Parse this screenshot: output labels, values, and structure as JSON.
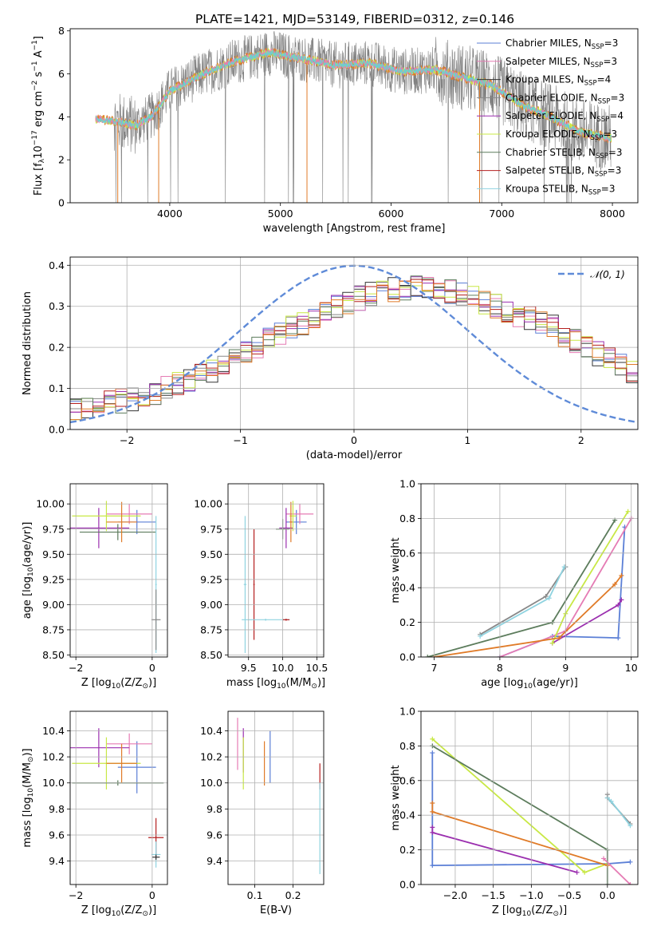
{
  "figure": {
    "title": "PLATE=1421, MJD=53149, FIBERID=0312, z=0.146"
  },
  "colors": {
    "Chabrier MILES": "#5b7fd6",
    "Salpeter MILES": "#e57bb4",
    "Kroupa MILES": "#333333",
    "Chabrier ELODIE": "#888888",
    "Salpeter ELODIE": "#9b2faf",
    "Kroupa ELODIE": "#c8e845",
    "Chabrier STELIB": "#5c7c5c",
    "Salpeter STELIB": "#b51f1f",
    "Kroupa STELIB": "#8fd3e0",
    "spectrum_gray": "#808080",
    "orange": "#e07b28",
    "teal": "#6ad1d1",
    "normal_curve": "#5f8bd8"
  },
  "chart_data": [
    {
      "id": "spectrum",
      "type": "line",
      "title": "PLATE=1421, MJD=53149, FIBERID=0312, z=0.146",
      "xlabel": "wavelength [Angstrom, rest frame]",
      "ylabel": "Flux [f_λ10^-17 erg cm^-2 s^-1 A^-1]",
      "xlim": [
        3100,
        8230
      ],
      "ylim": [
        0,
        8.1
      ],
      "xticks": [
        "4000",
        "5000",
        "6000",
        "7000",
        "8000"
      ],
      "yticks": [
        "0",
        "2",
        "4",
        "6",
        "8"
      ],
      "x_range_data": [
        3330,
        7990
      ],
      "legend": {
        "placement": "top-right",
        "entries": [
          {
            "label": "Chabrier MILES, N",
            "sub": "SSP",
            "suffix": "=3"
          },
          {
            "label": "Salpeter MILES, N",
            "sub": "SSP",
            "suffix": "=3"
          },
          {
            "label": "Kroupa MILES, N",
            "sub": "SSP",
            "suffix": "=4"
          },
          {
            "label": "Chabrier ELODIE, N",
            "sub": "SSP",
            "suffix": "=3"
          },
          {
            "label": "Salpeter ELODIE, N",
            "sub": "SSP",
            "suffix": "=4"
          },
          {
            "label": "Kroupa ELODIE, N",
            "sub": "SSP",
            "suffix": "=3"
          },
          {
            "label": "Chabrier STELIB, N",
            "sub": "SSP",
            "suffix": "=3"
          },
          {
            "label": "Salpeter STELIB, N",
            "sub": "SSP",
            "suffix": "=3"
          },
          {
            "label": "Kroupa STELIB, N",
            "sub": "SSP",
            "suffix": "=3"
          }
        ]
      },
      "continuum": [
        [
          3330,
          3.9
        ],
        [
          3500,
          3.8
        ],
        [
          3700,
          3.6
        ],
        [
          3850,
          4.1
        ],
        [
          4000,
          5.2
        ],
        [
          4300,
          6.0
        ],
        [
          4600,
          6.6
        ],
        [
          4900,
          7.0
        ],
        [
          5200,
          6.7
        ],
        [
          5500,
          6.4
        ],
        [
          5800,
          6.5
        ],
        [
          6100,
          6.1
        ],
        [
          6400,
          6.2
        ],
        [
          6600,
          5.9
        ],
        [
          6900,
          5.5
        ],
        [
          7200,
          4.5
        ],
        [
          7400,
          4.1
        ],
        [
          7700,
          3.3
        ],
        [
          7990,
          3.0
        ]
      ]
    },
    {
      "id": "residuals",
      "type": "histogram",
      "xlabel": "(data-model)/error",
      "ylabel": "Normed distribution",
      "xlim": [
        -2.5,
        2.5
      ],
      "ylim": [
        0,
        0.42
      ],
      "xticks": [
        "−2",
        "−1",
        "0",
        "1",
        "2"
      ],
      "yticks": [
        "0.0",
        "0.1",
        "0.2",
        "0.3",
        "0.4"
      ],
      "bin_width": 0.1,
      "base_values": [
        0.05,
        0.055,
        0.06,
        0.065,
        0.07,
        0.075,
        0.085,
        0.09,
        0.1,
        0.11,
        0.12,
        0.13,
        0.14,
        0.155,
        0.17,
        0.185,
        0.2,
        0.22,
        0.235,
        0.25,
        0.26,
        0.27,
        0.285,
        0.3,
        0.31,
        0.32,
        0.33,
        0.335,
        0.34,
        0.345,
        0.35,
        0.345,
        0.34,
        0.335,
        0.33,
        0.32,
        0.31,
        0.3,
        0.29,
        0.28,
        0.27,
        0.26,
        0.25,
        0.23,
        0.215,
        0.2,
        0.185,
        0.17,
        0.155,
        0.14
      ],
      "legend": {
        "label": "𝒩(0, 1)",
        "placement": "top-right"
      }
    },
    {
      "id": "age-vs-Z",
      "type": "errorbar",
      "xlabel": "Z [log10(Z/Z⊙)]",
      "ylabel": "age  [log10(age/yr)]",
      "xlim": [
        -2.15,
        0.4
      ],
      "ylim": [
        8.48,
        10.2
      ],
      "xticks": [
        "−2",
        "0"
      ],
      "yticks": [
        "8.50",
        "8.75",
        "9.00",
        "9.25",
        "9.50",
        "9.75",
        "10.00"
      ],
      "points": [
        {
          "x": -0.4,
          "y": 9.82,
          "xerr": 0.5,
          "yerr": 0.12,
          "color": "Chabrier MILES"
        },
        {
          "x": -0.6,
          "y": 9.9,
          "xerr": 0.6,
          "yerr": 0.1,
          "color": "Salpeter MILES"
        },
        {
          "x": -1.4,
          "y": 9.76,
          "xerr": 0.8,
          "yerr": 0.2,
          "color": "Salpeter ELODIE"
        },
        {
          "x": -1.2,
          "y": 9.88,
          "xerr": 0.9,
          "yerr": 0.15,
          "color": "Kroupa ELODIE"
        },
        {
          "x": -0.9,
          "y": 9.72,
          "xerr": 1.0,
          "yerr": 0.08,
          "color": "Chabrier STELIB"
        },
        {
          "x": -0.8,
          "y": 9.82,
          "xerr": 0.4,
          "yerr": 0.2,
          "color": "orange"
        },
        {
          "x": 0.1,
          "y": 9.2,
          "xerr": 0.02,
          "yerr": 0.68,
          "color": "Kroupa STELIB"
        },
        {
          "x": 0.1,
          "y": 8.85,
          "xerr": 0.12,
          "yerr": 0.3,
          "color": "Chabrier ELODIE"
        }
      ]
    },
    {
      "id": "age-vs-mass",
      "type": "errorbar",
      "xlabel": "mass [log10(M/M⊙)]",
      "ylabel": "",
      "xlim": [
        9.2,
        10.6
      ],
      "ylim": [
        8.48,
        10.2
      ],
      "xticks": [
        "9.5",
        "10.0",
        "10.5"
      ],
      "yticks": [
        "8.50",
        "8.75",
        "9.00",
        "9.25",
        "9.50",
        "9.75",
        "10.00"
      ],
      "points": [
        {
          "x": 10.2,
          "y": 9.82,
          "xerr": 0.15,
          "yerr": 0.12,
          "color": "Chabrier MILES"
        },
        {
          "x": 10.25,
          "y": 9.9,
          "xerr": 0.2,
          "yerr": 0.1,
          "color": "Salpeter MILES"
        },
        {
          "x": 10.05,
          "y": 9.76,
          "xerr": 0.1,
          "yerr": 0.2,
          "color": "Salpeter ELODIE"
        },
        {
          "x": 10.15,
          "y": 9.88,
          "xerr": 0.05,
          "yerr": 0.15,
          "color": "Kroupa ELODIE"
        },
        {
          "x": 10.0,
          "y": 9.75,
          "xerr": 0.1,
          "yerr": 0.1,
          "color": "Chabrier STELIB"
        },
        {
          "x": 10.12,
          "y": 9.82,
          "xerr": 0.02,
          "yerr": 0.2,
          "color": "orange"
        },
        {
          "x": 9.45,
          "y": 9.2,
          "xerr": 0.02,
          "yerr": 0.68,
          "color": "Kroupa STELIB"
        },
        {
          "x": 9.58,
          "y": 9.2,
          "xerr": 0.01,
          "yerr": 0.55,
          "color": "Salpeter STELIB"
        },
        {
          "x": 9.75,
          "y": 8.85,
          "xerr": 0.35,
          "yerr": 0.01,
          "color": "Kroupa STELIB"
        },
        {
          "x": 10.05,
          "y": 8.85,
          "xerr": 0.05,
          "yerr": 0.01,
          "color": "Salpeter STELIB"
        }
      ]
    },
    {
      "id": "mass-weight-vs-age",
      "type": "line",
      "xlabel": "age  [log10(age/yr)]",
      "ylabel": "mass weight",
      "xlim": [
        6.8,
        10.1
      ],
      "ylim": [
        0,
        1.0
      ],
      "xticks": [
        "7",
        "8",
        "9",
        "10"
      ],
      "yticks": [
        "0.0",
        "0.2",
        "0.4",
        "0.6",
        "0.8",
        "1.0"
      ],
      "series": [
        {
          "color": "Chabrier MILES",
          "points": [
            [
              8.0,
              0.0
            ],
            [
              8.8,
              0.12
            ],
            [
              9.8,
              0.11
            ],
            [
              9.9,
              0.75
            ]
          ]
        },
        {
          "color": "Salpeter MILES",
          "points": [
            [
              8.0,
              0.0
            ],
            [
              9.0,
              0.15
            ],
            [
              10.0,
              0.8
            ]
          ]
        },
        {
          "color": "Salpeter ELODIE",
          "points": [
            [
              8.8,
              0.08
            ],
            [
              9.8,
              0.3
            ],
            [
              9.85,
              0.33
            ]
          ]
        },
        {
          "color": "Kroupa ELODIE",
          "points": [
            [
              8.8,
              0.08
            ],
            [
              9.0,
              0.25
            ],
            [
              9.95,
              0.84
            ]
          ]
        },
        {
          "color": "Chabrier STELIB",
          "points": [
            [
              6.9,
              0.0
            ],
            [
              8.8,
              0.2
            ],
            [
              9.75,
              0.79
            ]
          ]
        },
        {
          "color": "orange",
          "points": [
            [
              7.0,
              0.0
            ],
            [
              8.9,
              0.11
            ],
            [
              9.75,
              0.42
            ],
            [
              9.85,
              0.47
            ]
          ]
        },
        {
          "color": "Chabrier ELODIE",
          "points": [
            [
              7.7,
              0.13
            ],
            [
              8.7,
              0.35
            ],
            [
              9.0,
              0.52
            ]
          ]
        },
        {
          "color": "Kroupa STELIB",
          "points": [
            [
              7.7,
              0.12
            ],
            [
              8.75,
              0.34
            ],
            [
              8.98,
              0.52
            ]
          ]
        }
      ]
    },
    {
      "id": "mass-vs-Z",
      "type": "errorbar",
      "xlabel": "Z [log10(Z/Z⊙)]",
      "ylabel": "mass [log10(M/M⊙)]",
      "xlim": [
        -2.15,
        0.4
      ],
      "ylim": [
        9.22,
        10.55
      ],
      "xticks": [
        "−2",
        "0"
      ],
      "yticks": [
        "9.4",
        "9.6",
        "9.8",
        "10.0",
        "10.2",
        "10.4"
      ],
      "points": [
        {
          "x": -0.4,
          "y": 10.12,
          "xerr": 0.5,
          "yerr": 0.2,
          "color": "Chabrier MILES"
        },
        {
          "x": -0.6,
          "y": 10.3,
          "xerr": 0.6,
          "yerr": 0.08,
          "color": "Salpeter MILES"
        },
        {
          "x": -1.4,
          "y": 10.27,
          "xerr": 0.8,
          "yerr": 0.15,
          "color": "Salpeter ELODIE"
        },
        {
          "x": -1.2,
          "y": 10.15,
          "xerr": 0.9,
          "yerr": 0.2,
          "color": "Kroupa ELODIE"
        },
        {
          "x": -0.9,
          "y": 10.0,
          "xerr": 1.2,
          "yerr": 0.02,
          "color": "Chabrier STELIB"
        },
        {
          "x": -0.8,
          "y": 10.15,
          "xerr": 0.4,
          "yerr": 0.15,
          "color": "orange"
        },
        {
          "x": 0.1,
          "y": 9.58,
          "xerr": 0.2,
          "yerr": 0.15,
          "color": "Salpeter STELIB"
        },
        {
          "x": 0.1,
          "y": 9.45,
          "xerr": 0.12,
          "yerr": 0.1,
          "color": "Kroupa STELIB"
        },
        {
          "x": 0.1,
          "y": 9.43,
          "xerr": 0.1,
          "yerr": 0.02,
          "color": "Kroupa MILES"
        }
      ]
    },
    {
      "id": "mass-vs-EBV",
      "type": "errorbar",
      "xlabel": "E(B-V)",
      "ylabel": "",
      "xlim": [
        0.03,
        0.28
      ],
      "ylim": [
        9.22,
        10.55
      ],
      "xticks": [
        "0.1",
        "0.2"
      ],
      "yticks": [
        "9.4",
        "9.6",
        "9.8",
        "10.0",
        "10.2",
        "10.4"
      ],
      "points": [
        {
          "x": 0.055,
          "y": 10.3,
          "yerr": 0.2,
          "color": "Salpeter MILES"
        },
        {
          "x": 0.07,
          "y": 10.25,
          "yerr": 0.17,
          "color": "Salpeter ELODIE"
        },
        {
          "x": 0.07,
          "y": 10.15,
          "yerr": 0.2,
          "color": "Kroupa ELODIE"
        },
        {
          "x": 0.125,
          "y": 10.15,
          "yerr": 0.17,
          "color": "orange"
        },
        {
          "x": 0.14,
          "y": 10.2,
          "yerr": 0.2,
          "color": "Chabrier MILES"
        },
        {
          "x": 0.27,
          "y": 10.05,
          "yerr": 0.1,
          "color": "Salpeter STELIB"
        },
        {
          "x": 0.27,
          "y": 9.65,
          "yerr": 0.35,
          "color": "Kroupa STELIB"
        }
      ]
    },
    {
      "id": "mass-weight-vs-Z",
      "type": "line",
      "xlabel": "Z [log10(Z/Z⊙)]",
      "ylabel": "mass weight",
      "xlim": [
        -2.45,
        0.4
      ],
      "ylim": [
        0,
        1.0
      ],
      "xticks": [
        "−2.0",
        "−1.5",
        "−1.0",
        "−0.5",
        "0.0"
      ],
      "yticks": [
        "0.0",
        "0.2",
        "0.4",
        "0.6",
        "0.8",
        "1.0"
      ],
      "series": [
        {
          "color": "Chabrier MILES",
          "points": [
            [
              -2.3,
              0.76
            ],
            [
              -2.3,
              0.11
            ],
            [
              0.0,
              0.12
            ],
            [
              0.3,
              0.13
            ]
          ]
        },
        {
          "color": "Kroupa ELODIE",
          "points": [
            [
              -2.3,
              0.84
            ],
            [
              -0.3,
              0.07
            ],
            [
              0.0,
              0.12
            ]
          ]
        },
        {
          "color": "Chabrier STELIB",
          "points": [
            [
              -2.3,
              0.8
            ],
            [
              0.0,
              0.2
            ],
            [
              0.0,
              0.0
            ]
          ]
        },
        {
          "color": "orange",
          "points": [
            [
              -2.3,
              0.47
            ],
            [
              -2.3,
              0.42
            ],
            [
              0.0,
              0.11
            ]
          ]
        },
        {
          "color": "Salpeter ELODIE",
          "points": [
            [
              -2.3,
              0.33
            ],
            [
              -2.3,
              0.3
            ],
            [
              -0.4,
              0.07
            ]
          ]
        },
        {
          "color": "Salpeter MILES",
          "points": [
            [
              -0.05,
              0.15
            ],
            [
              0.3,
              0.0
            ]
          ]
        },
        {
          "color": "Chabrier ELODIE",
          "points": [
            [
              0.0,
              0.52
            ],
            [
              0.0,
              0.5
            ],
            [
              0.3,
              0.35
            ]
          ]
        },
        {
          "color": "Kroupa STELIB",
          "points": [
            [
              0.0,
              0.5
            ],
            [
              0.05,
              0.48
            ],
            [
              0.3,
              0.34
            ]
          ]
        }
      ]
    }
  ]
}
